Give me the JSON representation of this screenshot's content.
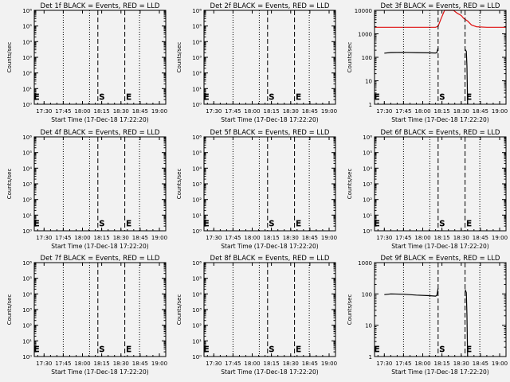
{
  "figure": {
    "background": "#f2f2f2",
    "axis_color": "#000000",
    "events_color": "#000000",
    "lld_color": "#e01010"
  },
  "chart_data": [
    {
      "type": "line",
      "title": "Det 1f BLACK = Events, RED = LLD",
      "xlabel": "Start Time (17-Dec-18 17:22:20)",
      "ylabel": "Counts/sec",
      "x_tick_labels": [
        "17:30",
        "17:45",
        "18:00",
        "18:15",
        "18:30",
        "18:45",
        "19:00"
      ],
      "xlim": [
        "17:22:20",
        "19:05:00"
      ],
      "y_scale": "log",
      "ylim": [
        1,
        1000000
      ],
      "y_tick_labels": [
        "10⁰",
        "10¹",
        "10²",
        "10³",
        "10⁴",
        "10⁵",
        "10⁶"
      ],
      "y_ticks": [
        1,
        10,
        100,
        1000,
        10000,
        100000,
        1000000
      ],
      "dotted_vlines": [
        "17:45",
        "18:05:30",
        "18:44:30"
      ],
      "dashed_vlines": [
        {
          "x": "18:12",
          "label": "S"
        },
        {
          "x": "18:33",
          "label": "E"
        }
      ],
      "series": []
    },
    {
      "type": "line",
      "title": "Det 2f BLACK = Events, RED = LLD",
      "xlabel": "Start Time (17-Dec-18 17:22:20)",
      "ylabel": "Counts/sec",
      "x_tick_labels": [
        "17:30",
        "17:45",
        "18:00",
        "18:15",
        "18:30",
        "18:45",
        "19:00"
      ],
      "xlim": [
        "17:22:20",
        "19:05:00"
      ],
      "y_scale": "log",
      "ylim": [
        1,
        1000000
      ],
      "y_tick_labels": [
        "10⁰",
        "10¹",
        "10²",
        "10³",
        "10⁴",
        "10⁵",
        "10⁶"
      ],
      "y_ticks": [
        1,
        10,
        100,
        1000,
        10000,
        100000,
        1000000
      ],
      "dotted_vlines": [
        "17:45",
        "18:05:30",
        "18:44:30"
      ],
      "dashed_vlines": [
        {
          "x": "18:12",
          "label": "S"
        },
        {
          "x": "18:33",
          "label": "E"
        }
      ],
      "series": []
    },
    {
      "type": "line",
      "title": "Det 3f BLACK = Events, RED = LLD",
      "xlabel": "Start Time (17-Dec-18 17:22:20)",
      "ylabel": "Counts/sec",
      "x_tick_labels": [
        "17:30",
        "17:45",
        "18:00",
        "18:15",
        "18:30",
        "18:45",
        "19:00"
      ],
      "xlim": [
        "17:22:20",
        "19:05:00"
      ],
      "y_scale": "log",
      "ylim": [
        1,
        10000
      ],
      "y_tick_labels": [
        "1",
        "10",
        "100",
        "1000",
        "10000"
      ],
      "y_ticks": [
        1,
        10,
        100,
        1000,
        10000
      ],
      "dotted_vlines": [
        "17:45",
        "18:05:30",
        "18:44:30"
      ],
      "dashed_vlines": [
        {
          "x": "18:12",
          "label": "S"
        },
        {
          "x": "18:33",
          "label": "E"
        }
      ],
      "series": [
        {
          "role": "lld",
          "x": [
            "17:22:20",
            "17:40",
            "18:00",
            "18:10",
            "18:12",
            "18:14",
            "18:17",
            "18:20",
            "18:24",
            "18:27",
            "18:30",
            "18:32",
            "18:35",
            "18:38",
            "18:42",
            "18:50",
            "19:05"
          ],
          "values": [
            1900,
            1900,
            1900,
            1900,
            2100,
            4000,
            10000,
            10000,
            10000,
            7500,
            6000,
            4500,
            3500,
            2400,
            2000,
            1900,
            1900
          ]
        },
        {
          "role": "events",
          "x": [
            "17:30",
            "17:35",
            "17:45",
            "17:55",
            "18:05",
            "18:10",
            "18:11",
            "18:12"
          ],
          "values": [
            150,
            160,
            162,
            158,
            155,
            153,
            160,
            250
          ]
        },
        {
          "role": "events",
          "x": [
            "18:33",
            "18:34",
            "18:34:30",
            "18:35"
          ],
          "values": [
            220,
            180,
            40,
            1
          ]
        }
      ]
    },
    {
      "type": "line",
      "title": "Det 4f BLACK = Events, RED = LLD",
      "xlabel": "Start Time (17-Dec-18 17:22:20)",
      "ylabel": "Counts/sec",
      "x_tick_labels": [
        "17:30",
        "17:45",
        "18:00",
        "18:15",
        "18:30",
        "18:45",
        "19:00"
      ],
      "xlim": [
        "17:22:20",
        "19:05:00"
      ],
      "y_scale": "log",
      "ylim": [
        1,
        1000000
      ],
      "y_tick_labels": [
        "10⁰",
        "10¹",
        "10²",
        "10³",
        "10⁴",
        "10⁵",
        "10⁶"
      ],
      "y_ticks": [
        1,
        10,
        100,
        1000,
        10000,
        100000,
        1000000
      ],
      "dotted_vlines": [
        "17:45",
        "18:05:30",
        "18:44:30"
      ],
      "dashed_vlines": [
        {
          "x": "18:12",
          "label": "S"
        },
        {
          "x": "18:33",
          "label": "E"
        }
      ],
      "series": []
    },
    {
      "type": "line",
      "title": "Det 5f BLACK = Events, RED = LLD",
      "xlabel": "Start Time (17-Dec-18 17:22:20)",
      "ylabel": "Counts/sec",
      "x_tick_labels": [
        "17:30",
        "17:45",
        "18:00",
        "18:15",
        "18:30",
        "18:45",
        "19:00"
      ],
      "xlim": [
        "17:22:20",
        "19:05:00"
      ],
      "y_scale": "log",
      "ylim": [
        1,
        1000000
      ],
      "y_tick_labels": [
        "10⁰",
        "10¹",
        "10²",
        "10³",
        "10⁴",
        "10⁵",
        "10⁶"
      ],
      "y_ticks": [
        1,
        10,
        100,
        1000,
        10000,
        100000,
        1000000
      ],
      "dotted_vlines": [
        "17:45",
        "18:05:30",
        "18:44:30"
      ],
      "dashed_vlines": [
        {
          "x": "18:12",
          "label": "S"
        },
        {
          "x": "18:33",
          "label": "E"
        }
      ],
      "series": []
    },
    {
      "type": "line",
      "title": "Det 6f BLACK = Events, RED = LLD",
      "xlabel": "Start Time (17-Dec-18 17:22:20)",
      "ylabel": "Counts/sec",
      "x_tick_labels": [
        "17:30",
        "17:45",
        "18:00",
        "18:15",
        "18:30",
        "18:45",
        "19:00"
      ],
      "xlim": [
        "17:22:20",
        "19:05:00"
      ],
      "y_scale": "log",
      "ylim": [
        1,
        1000000
      ],
      "y_tick_labels": [
        "10⁰",
        "10¹",
        "10²",
        "10³",
        "10⁴",
        "10⁵",
        "10⁶"
      ],
      "y_ticks": [
        1,
        10,
        100,
        1000,
        10000,
        100000,
        1000000
      ],
      "dotted_vlines": [
        "17:45",
        "18:05:30",
        "18:44:30"
      ],
      "dashed_vlines": [
        {
          "x": "18:12",
          "label": "S"
        },
        {
          "x": "18:33",
          "label": "E"
        }
      ],
      "series": []
    },
    {
      "type": "line",
      "title": "Det 7f BLACK = Events, RED = LLD",
      "xlabel": "Start Time (17-Dec-18 17:22:20)",
      "ylabel": "Counts/sec",
      "x_tick_labels": [
        "17:30",
        "17:45",
        "18:00",
        "18:15",
        "18:30",
        "18:45",
        "19:00"
      ],
      "xlim": [
        "17:22:20",
        "19:05:00"
      ],
      "y_scale": "log",
      "ylim": [
        1,
        1000000
      ],
      "y_tick_labels": [
        "10⁰",
        "10¹",
        "10²",
        "10³",
        "10⁴",
        "10⁵",
        "10⁶"
      ],
      "y_ticks": [
        1,
        10,
        100,
        1000,
        10000,
        100000,
        1000000
      ],
      "dotted_vlines": [
        "17:45",
        "18:05:30",
        "18:44:30"
      ],
      "dashed_vlines": [
        {
          "x": "18:12",
          "label": "S"
        },
        {
          "x": "18:33",
          "label": "E"
        }
      ],
      "series": []
    },
    {
      "type": "line",
      "title": "Det 8f BLACK = Events, RED = LLD",
      "xlabel": "Start Time (17-Dec-18 17:22:20)",
      "ylabel": "Counts/sec",
      "x_tick_labels": [
        "17:30",
        "17:45",
        "18:00",
        "18:15",
        "18:30",
        "18:45",
        "19:00"
      ],
      "xlim": [
        "17:22:20",
        "19:05:00"
      ],
      "y_scale": "log",
      "ylim": [
        1,
        1000000
      ],
      "y_tick_labels": [
        "10⁰",
        "10¹",
        "10²",
        "10³",
        "10⁴",
        "10⁵",
        "10⁶"
      ],
      "y_ticks": [
        1,
        10,
        100,
        1000,
        10000,
        100000,
        1000000
      ],
      "dotted_vlines": [
        "17:45",
        "18:05:30",
        "18:44:30"
      ],
      "dashed_vlines": [
        {
          "x": "18:12",
          "label": "S"
        },
        {
          "x": "18:33",
          "label": "E"
        }
      ],
      "series": []
    },
    {
      "type": "line",
      "title": "Det 9f BLACK = Events, RED = LLD",
      "xlabel": "Start Time (17-Dec-18 17:22:20)",
      "ylabel": "Counts/sec",
      "x_tick_labels": [
        "17:30",
        "17:45",
        "18:00",
        "18:15",
        "18:30",
        "18:45",
        "19:00"
      ],
      "xlim": [
        "17:22:20",
        "19:05:00"
      ],
      "y_scale": "log",
      "ylim": [
        1,
        1000
      ],
      "y_tick_labels": [
        "1",
        "10",
        "100",
        "1000"
      ],
      "y_ticks": [
        1,
        10,
        100,
        1000
      ],
      "dotted_vlines": [
        "17:45",
        "18:05:30",
        "18:44:30"
      ],
      "dashed_vlines": [
        {
          "x": "18:12",
          "label": "S"
        },
        {
          "x": "18:33",
          "label": "E"
        }
      ],
      "series": [
        {
          "role": "events",
          "x": [
            "17:30",
            "17:35",
            "17:45",
            "17:55",
            "18:05",
            "18:10",
            "18:11",
            "18:12"
          ],
          "values": [
            95,
            100,
            98,
            92,
            88,
            85,
            90,
            150
          ]
        },
        {
          "role": "events",
          "x": [
            "18:33",
            "18:34",
            "18:34:30",
            "18:35"
          ],
          "values": [
            140,
            110,
            20,
            1
          ]
        }
      ]
    }
  ]
}
